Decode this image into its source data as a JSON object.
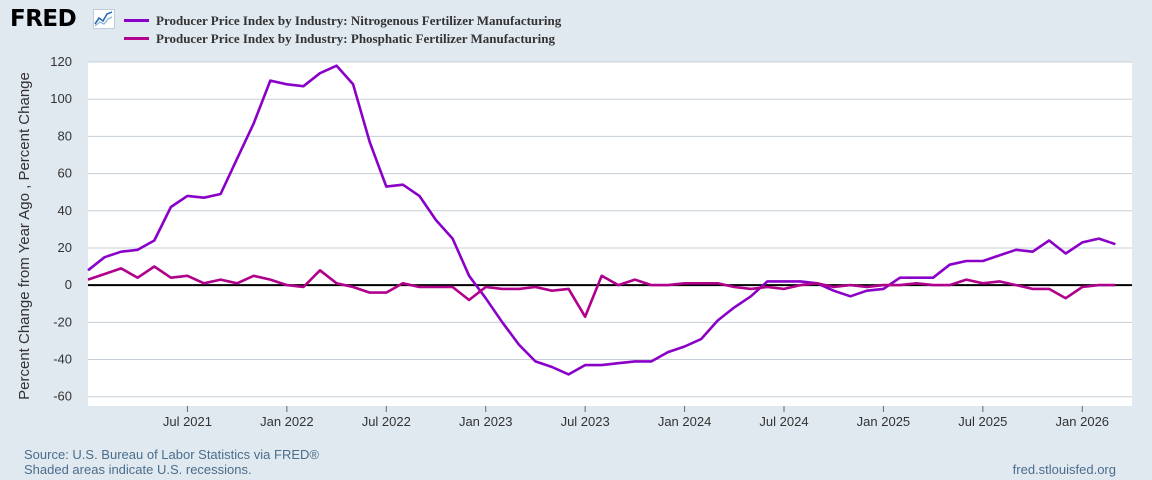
{
  "header": {
    "logo_text": "FRED",
    "logo_icon": "chart-line-icon"
  },
  "colors": {
    "background": "#e1e9f0",
    "plot_bg": "#ffffff",
    "grid": "#c6cfd7",
    "zero_line": "#000000"
  },
  "chart_data": {
    "type": "line",
    "title": "",
    "xlabel": "",
    "ylabel": "Percent Change from Year Ago , Percent Change",
    "ylim": [
      -65,
      120
    ],
    "yticks": [
      120,
      100,
      80,
      60,
      40,
      20,
      0,
      -20,
      -40,
      -60
    ],
    "ytick_labels": [
      "120",
      "100",
      "80",
      "60",
      "40",
      "20",
      "0",
      "-20",
      "-40",
      "-60"
    ],
    "xlim": [
      "2021-01",
      "2026-04"
    ],
    "xticks": [
      {
        "label": "Jul 2021",
        "date": "2021-07"
      },
      {
        "label": "Jan 2022",
        "date": "2022-01"
      },
      {
        "label": "Jul 2022",
        "date": "2022-07"
      },
      {
        "label": "Jan 2023",
        "date": "2023-01"
      },
      {
        "label": "Jul 2023",
        "date": "2023-07"
      },
      {
        "label": "Jan 2024",
        "date": "2024-01"
      },
      {
        "label": "Jul 2024",
        "date": "2024-07"
      },
      {
        "label": "Jan 2025",
        "date": "2025-01"
      },
      {
        "label": "Jul 2025",
        "date": "2025-07"
      },
      {
        "label": "Jan 2026",
        "date": "2026-01"
      }
    ],
    "zero_line": 0,
    "start": "2021-01",
    "frequency": "monthly",
    "series": [
      {
        "name": "Producer Price Index by Industry: Nitrogenous Fertilizer Manufacturing",
        "color": "#8a00c8",
        "values": [
          8,
          15,
          18,
          19,
          24,
          42,
          48,
          47,
          49,
          68,
          87,
          110,
          108,
          107,
          114,
          118,
          108,
          77,
          53,
          54,
          48,
          35,
          25,
          5,
          -7,
          -20,
          -32,
          -41,
          -44,
          -48,
          -43,
          -43,
          -42,
          -41,
          -41,
          -36,
          -33,
          -29,
          -19,
          -12,
          -6,
          2,
          2,
          2,
          1,
          -3,
          -6,
          -3,
          -2,
          4,
          4,
          4,
          11,
          13,
          13,
          16,
          19,
          18,
          24,
          17,
          23,
          25,
          22
        ]
      },
      {
        "name": "Producer Price Index by Industry: Phosphatic Fertilizer Manufacturing",
        "color": "#b0008c",
        "values": [
          3,
          6,
          9,
          4,
          10,
          4,
          5,
          1,
          3,
          1,
          5,
          3,
          0,
          -1,
          8,
          1,
          -1,
          -4,
          -4,
          1,
          -1,
          -1,
          -1,
          -8,
          -1,
          -2,
          -2,
          -1,
          -3,
          -2,
          -17,
          5,
          0,
          3,
          0,
          0,
          1,
          1,
          1,
          -1,
          -2,
          -1,
          -2,
          0,
          1,
          -1,
          0,
          -1,
          0,
          0,
          1,
          0,
          0,
          3,
          1,
          2,
          0,
          -2,
          -2,
          -7,
          -1,
          0,
          0
        ]
      }
    ]
  },
  "footer": {
    "source": "Source: U.S. Bureau of Labor Statistics via FRED®",
    "shaded": "Shaded areas indicate U.S. recessions.",
    "site": "fred.stlouisfed.org"
  }
}
